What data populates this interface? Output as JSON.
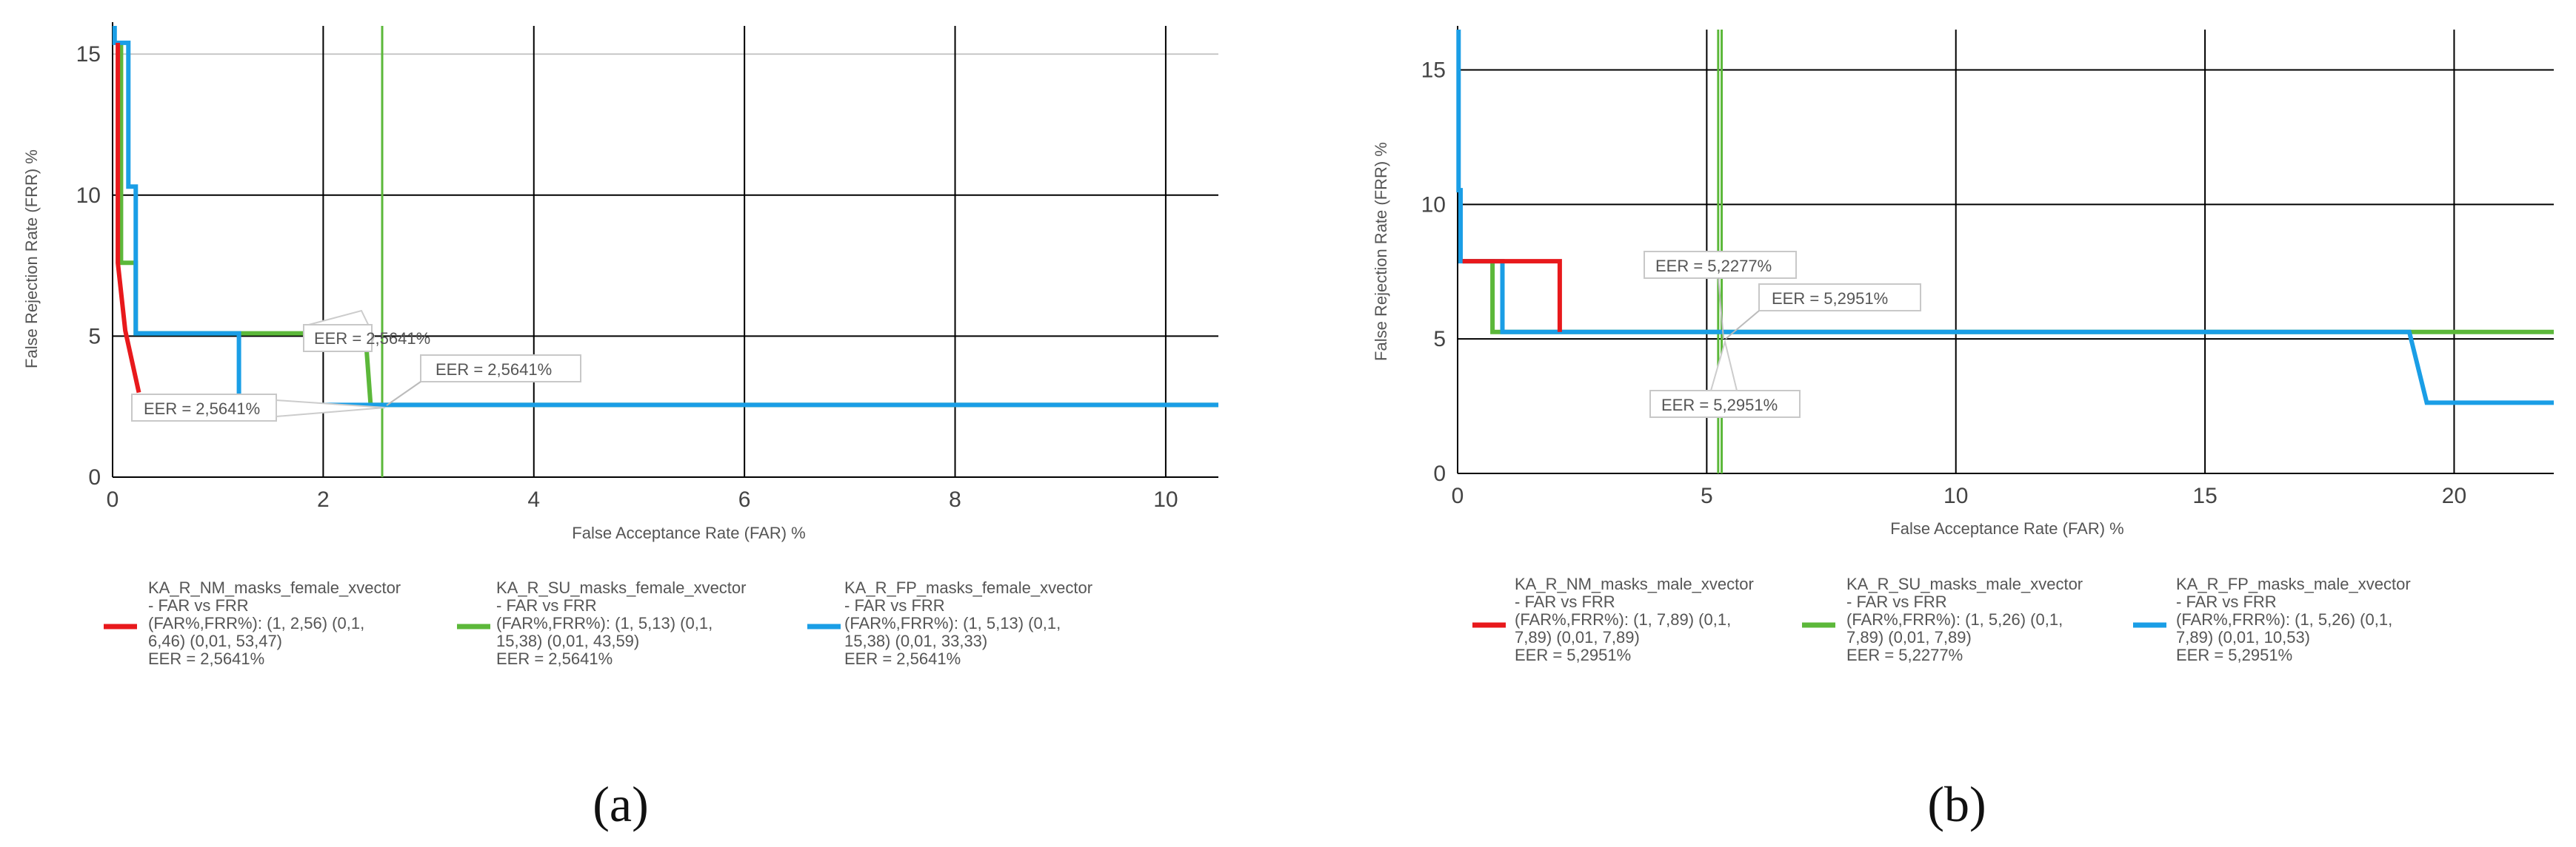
{
  "chart_data": [
    {
      "type": "line",
      "panel": "a",
      "caption": "(a)",
      "xlabel": "False Acceptance Rate (FAR) %",
      "ylabel": "False Rejection Rate (FRR) %",
      "xlim": [
        0,
        10.5
      ],
      "ylim": [
        0,
        16
      ],
      "x_ticks": [
        0,
        2,
        4,
        6,
        8,
        10
      ],
      "y_ticks": [
        0,
        5,
        10,
        15
      ],
      "x_tick_labels": [
        "0",
        "2",
        "4",
        "6",
        "8",
        "10"
      ],
      "y_tick_labels": [
        "0",
        "5",
        "10",
        "15"
      ],
      "grid": true,
      "legend_position": "bottom",
      "series": [
        {
          "name": "KA_R_NM_masks_female_xvector - FAR vs FRR",
          "color": "#e8191c",
          "legend_lines": [
            "KA_R_NM_masks_female_xvector",
            "- FAR vs FRR",
            "(FAR%,FRR%): (1, 2,56) (0,1,",
            "6,46) (0,01, 53,47)",
            "EER = 2,5641%"
          ],
          "points": [
            [
              0.05,
              15.4
            ],
            [
              0.05,
              7.6
            ],
            [
              0.12,
              5.2
            ],
            [
              0.25,
              3.0
            ]
          ]
        },
        {
          "name": "KA_R_SU_masks_female_xvector - FAR vs FRR",
          "color": "#5cb83a",
          "legend_lines": [
            "KA_R_SU_masks_female_xvector",
            "- FAR vs FRR",
            "(FAR%,FRR%): (1, 5,13) (0,1,",
            "15,38) (0,01, 43,59)",
            "EER = 2,5641%"
          ],
          "points": [
            [
              0.08,
              15.4
            ],
            [
              0.08,
              7.6
            ],
            [
              0.22,
              7.6
            ],
            [
              0.22,
              5.1
            ],
            [
              2.4,
              5.1
            ],
            [
              2.45,
              2.56
            ],
            [
              10.5,
              2.56
            ]
          ]
        },
        {
          "name": "KA_R_FP_masks_female_xvector - FAR vs FRR",
          "color": "#1a9ee6",
          "legend_lines": [
            "KA_R_FP_masks_female_xvector",
            "- FAR vs FRR",
            "(FAR%,FRR%): (1, 5,13) (0,1,",
            "15,38) (0,01, 33,33)",
            "EER = 2,5641%"
          ],
          "points": [
            [
              0.02,
              16.0
            ],
            [
              0.02,
              15.4
            ],
            [
              0.15,
              15.4
            ],
            [
              0.15,
              10.3
            ],
            [
              0.22,
              10.3
            ],
            [
              0.22,
              5.1
            ],
            [
              1.2,
              5.1
            ],
            [
              1.2,
              3.0
            ],
            [
              1.2,
              2.56
            ],
            [
              10.5,
              2.56
            ]
          ]
        }
      ],
      "eer_labels": [
        "EER = 2,5641%",
        "EER = 2,5641%",
        "EER = 2,5641%"
      ],
      "eer_line_x": 2.56
    },
    {
      "type": "line",
      "panel": "b",
      "caption": "(b)",
      "xlabel": "False Acceptance Rate (FAR) %",
      "ylabel": "False Rejection Rate (FRR) %",
      "xlim": [
        0,
        22
      ],
      "ylim": [
        0,
        16.5
      ],
      "x_ticks": [
        0,
        5,
        10,
        15,
        20
      ],
      "y_ticks": [
        0,
        5,
        10,
        15
      ],
      "x_tick_labels": [
        "0",
        "5",
        "10",
        "15",
        "20"
      ],
      "y_tick_labels": [
        "0",
        "5",
        "10",
        "15"
      ],
      "grid": true,
      "legend_position": "bottom",
      "series": [
        {
          "name": "KA_R_NM_masks_male_xvector - FAR vs FRR",
          "color": "#e8191c",
          "legend_lines": [
            "KA_R_NM_masks_male_xvector",
            "- FAR vs FRR",
            "(FAR%,FRR%): (1, 7,89) (0,1,",
            "7,89) (0,01, 7,89)",
            "EER = 5,2951%"
          ],
          "points": [
            [
              0.1,
              7.89
            ],
            [
              2.05,
              7.89
            ],
            [
              2.05,
              5.26
            ]
          ]
        },
        {
          "name": "KA_R_SU_masks_male_xvector - FAR vs FRR",
          "color": "#5cb83a",
          "legend_lines": [
            "KA_R_SU_masks_male_xvector",
            "- FAR vs FRR",
            "(FAR%,FRR%): (1, 5,26) (0,1,",
            "7,89) (0,01, 7,89)",
            "EER = 5,2277%"
          ],
          "points": [
            [
              0.1,
              7.89
            ],
            [
              0.7,
              7.89
            ],
            [
              0.7,
              5.26
            ],
            [
              22,
              5.26
            ]
          ]
        },
        {
          "name": "KA_R_FP_masks_male_xvector - FAR vs FRR",
          "color": "#1a9ee6",
          "legend_lines": [
            "KA_R_FP_masks_male_xvector",
            "- FAR vs FRR",
            "(FAR%,FRR%): (1, 5,26) (0,1,",
            "7,89) (0,01, 10,53)",
            "EER = 5,2951%"
          ],
          "points": [
            [
              0.02,
              16.5
            ],
            [
              0.02,
              10.53
            ],
            [
              0.06,
              10.53
            ],
            [
              0.06,
              7.89
            ],
            [
              0.9,
              7.89
            ],
            [
              0.9,
              5.26
            ],
            [
              19.1,
              5.26
            ],
            [
              19.45,
              2.63
            ],
            [
              22,
              2.63
            ]
          ]
        }
      ],
      "eer_labels": [
        "EER = 5,2277%",
        "EER = 5,2951%",
        "EER = 5,2951%"
      ],
      "eer_line_x": [
        5.23,
        5.3
      ]
    }
  ]
}
